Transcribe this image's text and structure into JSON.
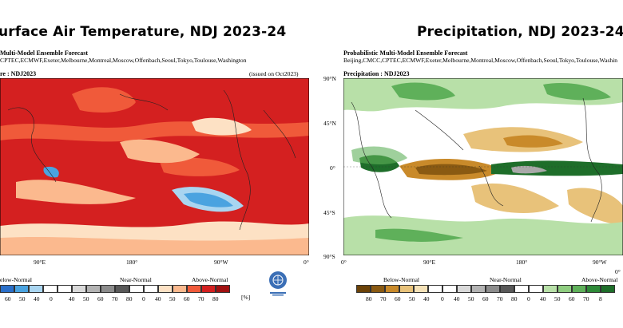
{
  "left": {
    "title": "urface Air Temperature, NDJ 2023-24",
    "subtitle1": "Multi-Model Ensemble Forecast",
    "subtitle2": "CPTEC,ECMWF,Exeter,Melbourne,Montreal,Moscow,Offenbach,Seoul,Tokyo,Toulouse,Washington",
    "map_label": "re : NDJ2023",
    "issued": "(issued on Oct2023)",
    "lon_ticks": [
      "90°E",
      "180°",
      "90°W",
      "0°"
    ],
    "legend_cats": [
      "elow-Normal",
      "Near-Normal",
      "Above-Normal"
    ],
    "legend_values": [
      "60",
      "50",
      "40",
      "0",
      "40",
      "50",
      "60",
      "70",
      "80",
      "0",
      "40",
      "50",
      "60",
      "70",
      "80"
    ],
    "unit": "[%]",
    "colors": {
      "above_dark": "#d42020",
      "above_mid": "#f05a3a",
      "above_light": "#fbb98e",
      "above_pale": "#fde1c4",
      "below_light": "#a9d5f0",
      "below_mid": "#4aa3e0"
    }
  },
  "right": {
    "title": "Precipitation, NDJ 2023-24",
    "subtitle1": "Probabilistic Multi-Model Ensemble Forecast",
    "subtitle2": "Beijing,CMCC,CPTEC,ECMWF,Exeter,Melbourne,Montreal,Moscow,Offenbach,Seoul,Tokyo,Toulouse,Washin",
    "map_label": "Precipitation : NDJ2023",
    "lat_ticks": [
      "90°N",
      "45°N",
      "0°",
      "45°S",
      "90°S"
    ],
    "lon_ticks": [
      "0°",
      "90°E",
      "180°",
      "90°W",
      "0°"
    ],
    "legend_cats": [
      "Below-Normal",
      "Near-Normal",
      "Above-Normal"
    ],
    "legend_values": [
      "80",
      "70",
      "60",
      "50",
      "40",
      "0",
      "40",
      "50",
      "60",
      "70",
      "80",
      "0",
      "40",
      "50",
      "60",
      "70",
      "8"
    ],
    "colors": {
      "dry_dark": "#8a5a12",
      "dry_mid": "#c98a2a",
      "dry_light": "#e8c27a",
      "near": "#a9a9a9",
      "wet_light": "#b8e0a8",
      "wet_mid": "#5fb05a",
      "wet_dark": "#1e6e2a"
    }
  }
}
